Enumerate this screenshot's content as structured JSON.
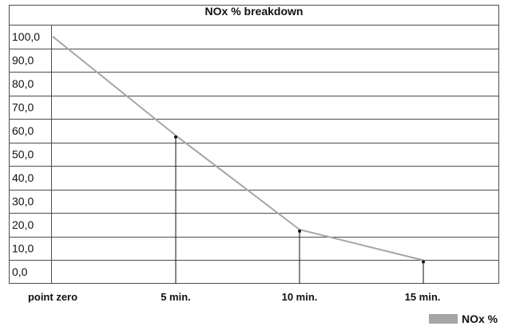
{
  "chart_data": {
    "type": "line",
    "title": "NOx % breakdown",
    "xlabel": "",
    "ylabel": "",
    "categories": [
      "point zero",
      "5 min.",
      "10 min.",
      "15 min."
    ],
    "series": [
      {
        "name": "NOx %",
        "values": [
          100.0,
          58.0,
          18.0,
          5.0
        ],
        "color": "#a6a6a6"
      }
    ],
    "y_tick_labels": [
      "100,0",
      "90,0",
      "80,0",
      "70,0",
      "60,0",
      "50,0",
      "40,0",
      "30,0",
      "20,0",
      "10,0",
      "0,0"
    ],
    "ylim": [
      0,
      100
    ],
    "grid": true,
    "legend_position": "bottom-right",
    "colors": {
      "line": "#a6a6a6",
      "grid": "#4d4d4d",
      "text": "#111111"
    }
  }
}
